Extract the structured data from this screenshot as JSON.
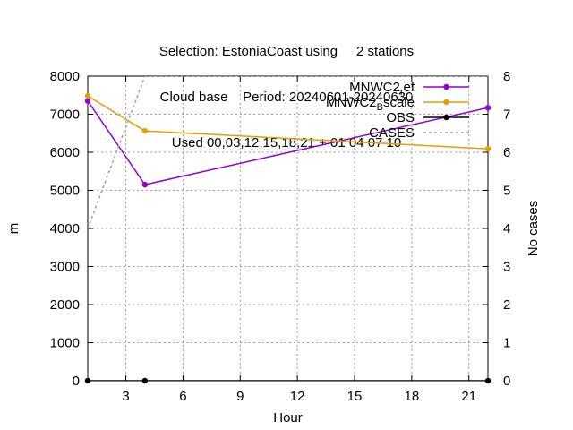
{
  "title_lines": [
    "Selection: EstoniaCoast using     2 stations",
    "Cloud base    Period: 20240601-20240630",
    "Used 00,03,12,15,18,21 + 01 04 07 10"
  ],
  "chart_data": {
    "type": "line",
    "xlabel": "Hour",
    "ylabel": "m",
    "y2label": "No cases",
    "xlim": [
      1,
      22
    ],
    "ylim": [
      0,
      8000
    ],
    "y2lim": [
      0,
      8
    ],
    "xticks": [
      3,
      6,
      9,
      12,
      15,
      18,
      21
    ],
    "yticks": [
      0,
      1000,
      2000,
      3000,
      4000,
      5000,
      6000,
      7000,
      8000
    ],
    "y2ticks": [
      0,
      1,
      2,
      3,
      4,
      5,
      6,
      7,
      8
    ],
    "grid": true,
    "legend_position": "top-right",
    "series": [
      {
        "name": "MNWC2_ref",
        "label_main": "MNWC2",
        "label_sub": "r",
        "label_rest": "ef",
        "color": "#9400d3",
        "axis": "y",
        "style": "line-points",
        "x": [
          1,
          4,
          22
        ],
        "y": [
          7350,
          5150,
          7170
        ]
      },
      {
        "name": "MNWC2_Bscale",
        "label_main": "MNWC2",
        "label_sub": "B",
        "label_rest": "scale",
        "color": "#e69f00",
        "axis": "y",
        "style": "line-points",
        "x": [
          1,
          4,
          22
        ],
        "y": [
          7480,
          6560,
          6090
        ]
      },
      {
        "name": "OBS",
        "label_main": "OBS",
        "label_sub": "",
        "label_rest": "",
        "color": "#000000",
        "axis": "y",
        "style": "line-points",
        "x": [
          1,
          4,
          22
        ],
        "y": [
          0,
          0,
          0
        ]
      },
      {
        "name": "CASES",
        "label_main": "CASES",
        "label_sub": "",
        "label_rest": "",
        "color": "#a0a0a0",
        "axis": "y2",
        "style": "dashed",
        "x": [
          1,
          4,
          22
        ],
        "y": [
          4,
          8,
          8
        ]
      }
    ]
  }
}
